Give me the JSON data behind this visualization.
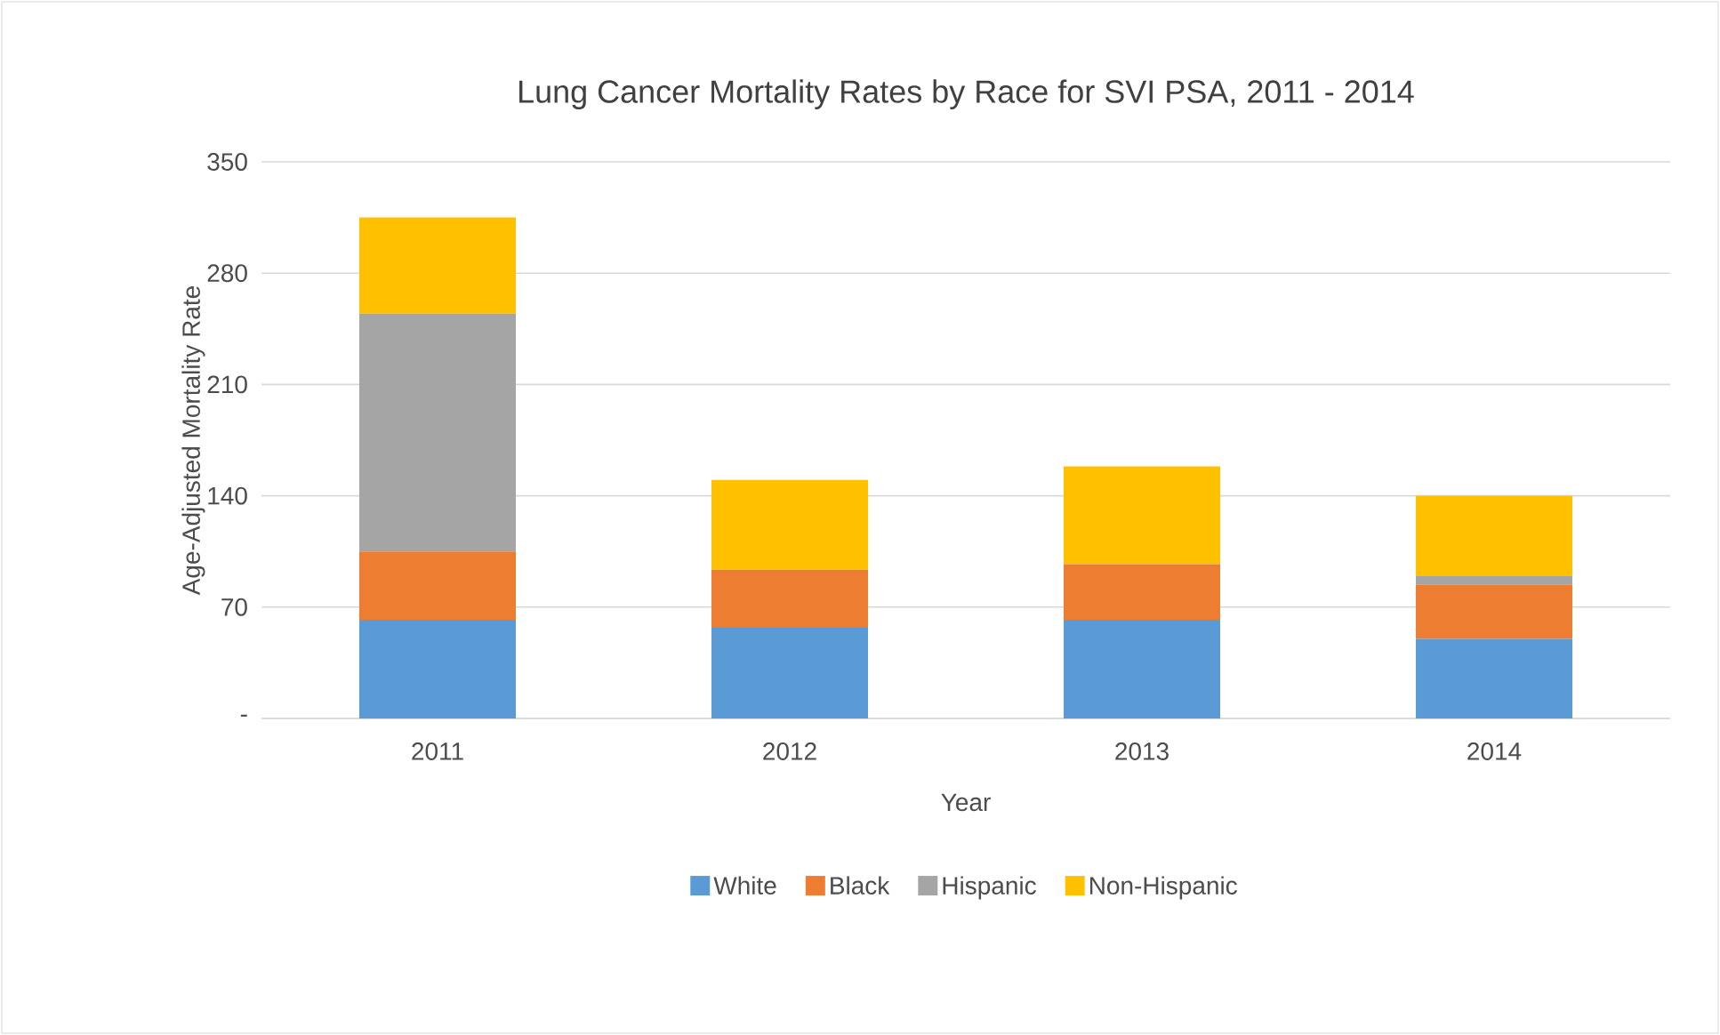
{
  "chart_data": {
    "type": "bar",
    "stacked": true,
    "title": "Lung Cancer Mortality Rates by Race for SVI PSA, 2011 - 2014",
    "xlabel": "Year",
    "ylabel": "Age-Adjusted Mortality Rate",
    "categories": [
      "2011",
      "2012",
      "2013",
      "2014"
    ],
    "series": [
      {
        "name": "White",
        "color": "#5b9bd5",
        "values": [
          62,
          57,
          62,
          50
        ]
      },
      {
        "name": "Black",
        "color": "#ed7d31",
        "values": [
          43,
          36.5,
          35,
          34
        ]
      },
      {
        "name": "Hispanic",
        "color": "#a5a5a5",
        "values": [
          149.5,
          0,
          0,
          5.5
        ]
      },
      {
        "name": "Non-Hispanic",
        "color": "#ffc000",
        "values": [
          60.5,
          56.5,
          61.5,
          50.5
        ]
      }
    ],
    "ylim": [
      0,
      350
    ],
    "yticks": [
      {
        "value": 0,
        "label": "-"
      },
      70,
      140,
      210,
      280,
      350
    ],
    "grid": "y",
    "legend": "bottom"
  }
}
